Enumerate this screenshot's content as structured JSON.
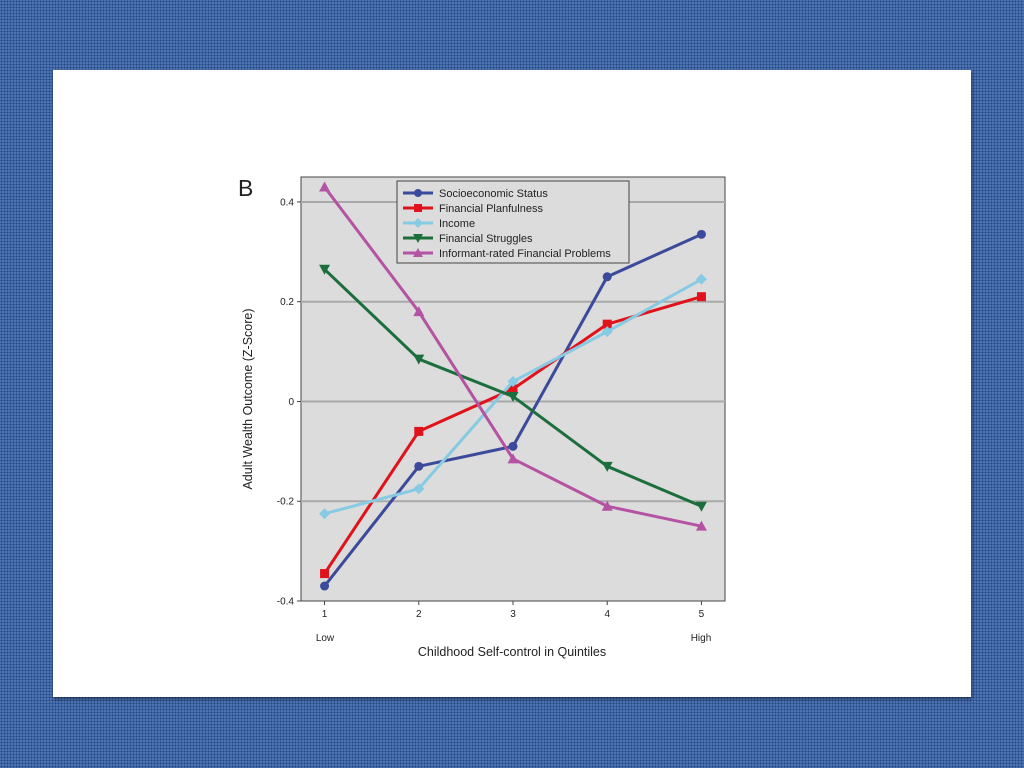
{
  "chart_data": {
    "type": "line",
    "panel_label": "B",
    "xlabel": "Childhood Self-control in Quintiles",
    "ylabel": "Adult Wealth Outcome (Z-Score)",
    "x": [
      1,
      2,
      3,
      4,
      5
    ],
    "x_tick_labels": [
      "1",
      "2",
      "3",
      "4",
      "5"
    ],
    "x_end_labels": {
      "low": "Low",
      "high": "High"
    },
    "y_ticks": [
      -0.4,
      -0.2,
      0,
      0.2,
      0.4
    ],
    "y_tick_labels": [
      "-0.4",
      "-0.2",
      "0",
      "0.2",
      "0.4"
    ],
    "ylim": [
      -0.4,
      0.45
    ],
    "xlim": [
      0.75,
      5.25
    ],
    "grid": "horizontal",
    "legend_position": "top-center",
    "series": [
      {
        "name": "Socioeconomic Status",
        "color": "#3b4a9a",
        "marker": "circle",
        "values": [
          -0.37,
          -0.13,
          -0.09,
          0.25,
          0.335
        ]
      },
      {
        "name": "Financial Planfulness",
        "color": "#e0121b",
        "marker": "square",
        "values": [
          -0.345,
          -0.06,
          0.025,
          0.155,
          0.21
        ]
      },
      {
        "name": "Income",
        "color": "#86cbe3",
        "marker": "diamond",
        "values": [
          -0.225,
          -0.175,
          0.04,
          0.14,
          0.245
        ]
      },
      {
        "name": "Financial Struggles",
        "color": "#1d6e3d",
        "marker": "triangle-down",
        "values": [
          0.265,
          0.085,
          0.01,
          -0.13,
          -0.21
        ]
      },
      {
        "name": "Informant-rated Financial Problems",
        "color": "#b452a3",
        "marker": "triangle-up",
        "values": [
          0.43,
          0.18,
          -0.115,
          -0.21,
          -0.25
        ]
      }
    ]
  }
}
